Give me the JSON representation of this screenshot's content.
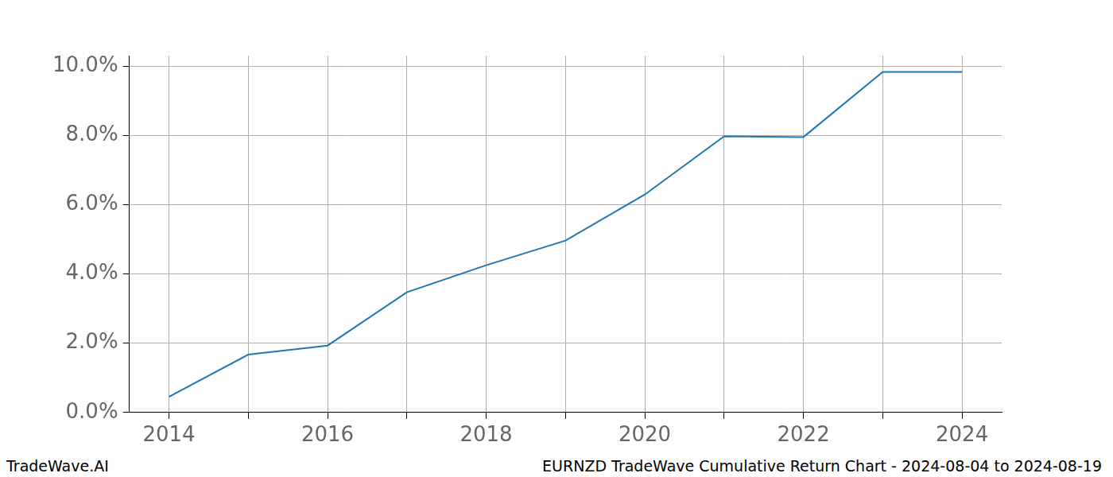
{
  "chart_data": {
    "type": "line",
    "categories": [
      "2014",
      null,
      "2016",
      null,
      "2018",
      null,
      "2020",
      null,
      "2022",
      null,
      "2024"
    ],
    "values": [
      0.45,
      1.67,
      1.93,
      3.47,
      4.25,
      4.96,
      6.29,
      7.97,
      7.95,
      9.83,
      9.83
    ],
    "color": "#1f77b4",
    "ylim": [
      0,
      10.3
    ],
    "yticks": [
      {
        "value": 0,
        "label": "0.0%"
      },
      {
        "value": 2,
        "label": "2.0%"
      },
      {
        "value": 4,
        "label": "4.0%"
      },
      {
        "value": 6,
        "label": "6.0%"
      },
      {
        "value": 8,
        "label": "8.0%"
      },
      {
        "value": 10,
        "label": "10.0%"
      }
    ],
    "grid": true,
    "footer_left": "TradeWave.AI",
    "footer_right": "EURNZD TradeWave Cumulative Return Chart - 2024-08-04 to 2024-08-19"
  }
}
